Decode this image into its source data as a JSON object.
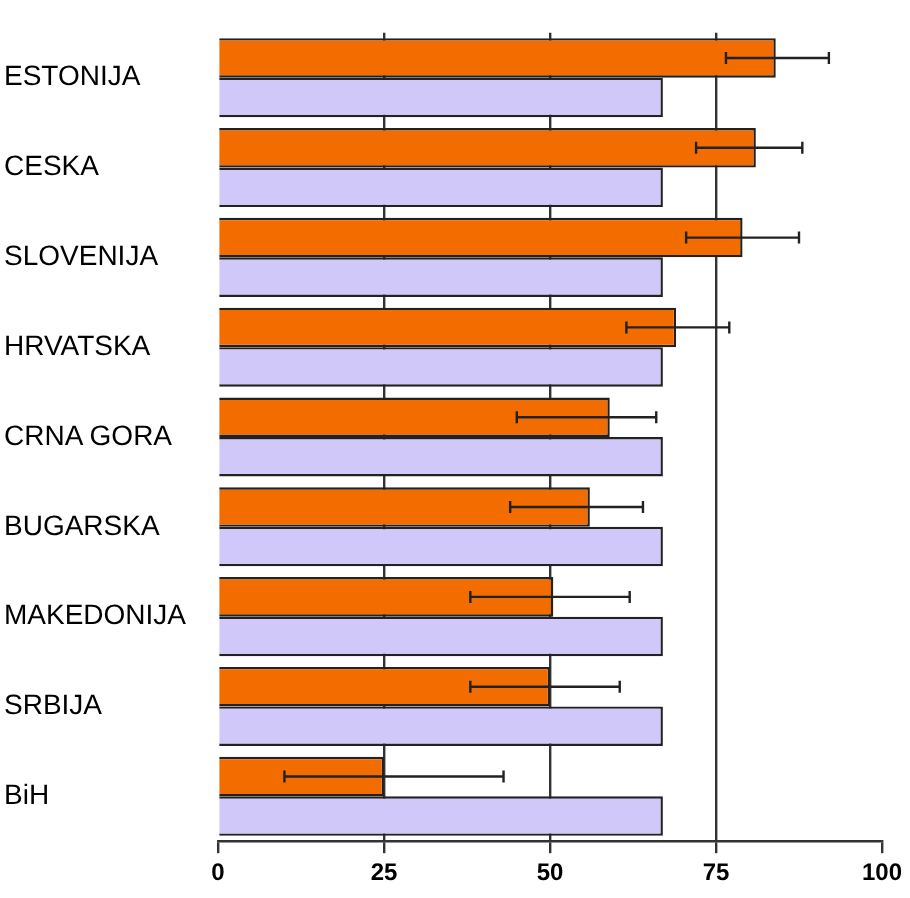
{
  "chart_data": {
    "type": "bar",
    "orientation": "horizontal",
    "categories": [
      "ESTONIJA",
      "CESKA",
      "SLOVENIJA",
      "HRVATSKA",
      "CRNA GORA",
      "BUGARSKA",
      "MAKEDONIJA",
      "SRBIJA",
      "BiH"
    ],
    "series": [
      {
        "color": "#f26c00",
        "values": [
          84,
          81,
          79,
          69,
          59,
          56,
          50.5,
          50,
          25
        ],
        "errors": [
          [
            76.5,
            92
          ],
          [
            72,
            88
          ],
          [
            70.5,
            87.5
          ],
          [
            61.5,
            77
          ],
          [
            45,
            66
          ],
          [
            44,
            64
          ],
          [
            38,
            62
          ],
          [
            38,
            60.5
          ],
          [
            10,
            43
          ]
        ]
      },
      {
        "color": "#d0c8f8",
        "values": [
          67,
          67,
          67,
          67,
          67,
          67,
          67,
          67,
          67
        ]
      }
    ],
    "xlim": [
      0,
      100
    ],
    "xticks": [
      0,
      25,
      50,
      75,
      100
    ],
    "grid": "x",
    "legend": false
  }
}
